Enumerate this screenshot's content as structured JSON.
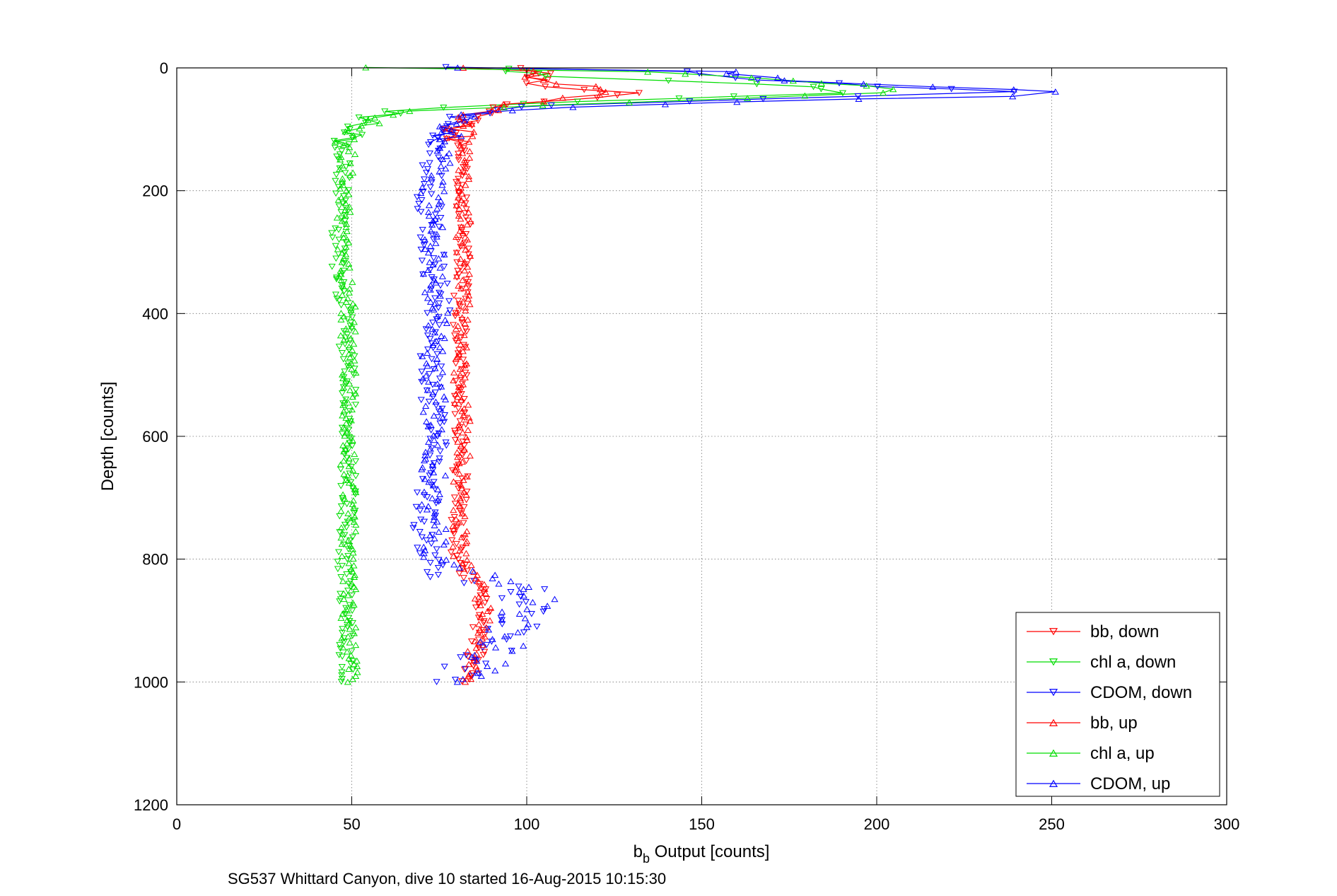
{
  "figure": {
    "caption": "SG537 Whittard Canyon, dive 10 started 16-Aug-2015 10:15:30"
  },
  "chart_data": {
    "type": "scatter",
    "title": "",
    "xlabel_main": "b",
    "xlabel_sub": "b",
    "xlabel_rest": " Output [counts]",
    "ylabel": "Depth [counts]",
    "xlim": [
      0,
      300
    ],
    "ylim": [
      1200,
      0
    ],
    "y_reversed": true,
    "grid": true,
    "legend_position": "bottom-right",
    "x_ticks": [
      0,
      50,
      100,
      150,
      200,
      250,
      300
    ],
    "x_tick_labels": [
      "0",
      "50",
      "100",
      "150",
      "200",
      "250",
      "300"
    ],
    "y_ticks": [
      0,
      200,
      400,
      600,
      800,
      1000,
      1200
    ],
    "y_tick_labels": [
      "0",
      "200",
      "400",
      "600",
      "800",
      "1000",
      "1200"
    ],
    "series": [
      {
        "name": "bb, down",
        "color": "#ff0000",
        "marker": "triangle-down",
        "profile": [
          [
            0,
            102
          ],
          [
            10,
            104
          ],
          [
            20,
            103
          ],
          [
            30,
            104
          ],
          [
            40,
            128
          ],
          [
            50,
            120
          ],
          [
            60,
            95
          ],
          [
            70,
            88
          ],
          [
            80,
            84
          ],
          [
            90,
            82
          ],
          [
            100,
            81
          ],
          [
            150,
            81
          ],
          [
            200,
            82
          ],
          [
            300,
            82
          ],
          [
            400,
            81
          ],
          [
            500,
            81
          ],
          [
            600,
            81
          ],
          [
            700,
            81
          ],
          [
            800,
            80
          ],
          [
            830,
            82
          ],
          [
            850,
            88
          ],
          [
            900,
            87
          ],
          [
            950,
            86
          ],
          [
            980,
            84
          ],
          [
            1000,
            83
          ]
        ]
      },
      {
        "name": "chl a, down",
        "color": "#00dd00",
        "marker": "triangle-down",
        "profile": [
          [
            0,
            90
          ],
          [
            15,
            110
          ],
          [
            30,
            180
          ],
          [
            40,
            200
          ],
          [
            50,
            140
          ],
          [
            60,
            90
          ],
          [
            70,
            65
          ],
          [
            80,
            57
          ],
          [
            90,
            53
          ],
          [
            100,
            50
          ],
          [
            110,
            48
          ],
          [
            120,
            47
          ],
          [
            150,
            48
          ],
          [
            200,
            47
          ],
          [
            300,
            46
          ],
          [
            400,
            48
          ],
          [
            500,
            49
          ],
          [
            600,
            49
          ],
          [
            700,
            49
          ],
          [
            800,
            48
          ],
          [
            900,
            49
          ],
          [
            1000,
            48
          ]
        ]
      },
      {
        "name": "CDOM, down",
        "color": "#0000ff",
        "marker": "triangle-down",
        "profile": [
          [
            0,
            145
          ],
          [
            15,
            155
          ],
          [
            30,
            200
          ],
          [
            40,
            240
          ],
          [
            50,
            170
          ],
          [
            60,
            110
          ],
          [
            70,
            88
          ],
          [
            80,
            80
          ],
          [
            90,
            77
          ],
          [
            100,
            75
          ],
          [
            150,
            73
          ],
          [
            200,
            72
          ],
          [
            300,
            73
          ],
          [
            400,
            75
          ],
          [
            500,
            72
          ],
          [
            600,
            74
          ],
          [
            700,
            72
          ],
          [
            750,
            71
          ],
          [
            800,
            72
          ],
          [
            830,
            75
          ],
          [
            850,
            100
          ],
          [
            900,
            98
          ],
          [
            950,
            90
          ],
          [
            980,
            82
          ],
          [
            1000,
            78
          ]
        ]
      },
      {
        "name": "bb, up",
        "color": "#ff0000",
        "marker": "triangle-up",
        "profile": [
          [
            0,
            103
          ],
          [
            20,
            104
          ],
          [
            30,
            115
          ],
          [
            40,
            128
          ],
          [
            50,
            112
          ],
          [
            60,
            95
          ],
          [
            70,
            87
          ],
          [
            80,
            83
          ],
          [
            100,
            82
          ],
          [
            200,
            82
          ],
          [
            300,
            82
          ],
          [
            400,
            82
          ],
          [
            500,
            81
          ],
          [
            600,
            82
          ],
          [
            700,
            81
          ],
          [
            800,
            81
          ],
          [
            850,
            87
          ],
          [
            900,
            88
          ],
          [
            950,
            85
          ],
          [
            1000,
            84
          ]
        ]
      },
      {
        "name": "chl a, up",
        "color": "#00dd00",
        "marker": "triangle-up",
        "profile": [
          [
            0,
            120
          ],
          [
            10,
            150
          ],
          [
            20,
            175
          ],
          [
            30,
            195
          ],
          [
            40,
            205
          ],
          [
            50,
            160
          ],
          [
            60,
            110
          ],
          [
            70,
            70
          ],
          [
            80,
            58
          ],
          [
            100,
            51
          ],
          [
            120,
            49
          ],
          [
            200,
            48
          ],
          [
            300,
            48
          ],
          [
            400,
            49
          ],
          [
            500,
            49
          ],
          [
            600,
            49
          ],
          [
            700,
            49
          ],
          [
            800,
            49
          ],
          [
            900,
            49
          ],
          [
            1000,
            50
          ]
        ]
      },
      {
        "name": "CDOM, up",
        "color": "#0000ff",
        "marker": "triangle-up",
        "profile": [
          [
            0,
            155
          ],
          [
            10,
            160
          ],
          [
            20,
            175
          ],
          [
            30,
            215
          ],
          [
            40,
            255
          ],
          [
            45,
            250
          ],
          [
            50,
            200
          ],
          [
            60,
            130
          ],
          [
            70,
            90
          ],
          [
            80,
            80
          ],
          [
            100,
            77
          ],
          [
            200,
            73
          ],
          [
            300,
            74
          ],
          [
            400,
            74
          ],
          [
            500,
            73
          ],
          [
            600,
            74
          ],
          [
            700,
            73
          ],
          [
            800,
            74
          ],
          [
            850,
            103
          ],
          [
            900,
            97
          ],
          [
            950,
            92
          ],
          [
            1000,
            80
          ]
        ]
      }
    ]
  }
}
